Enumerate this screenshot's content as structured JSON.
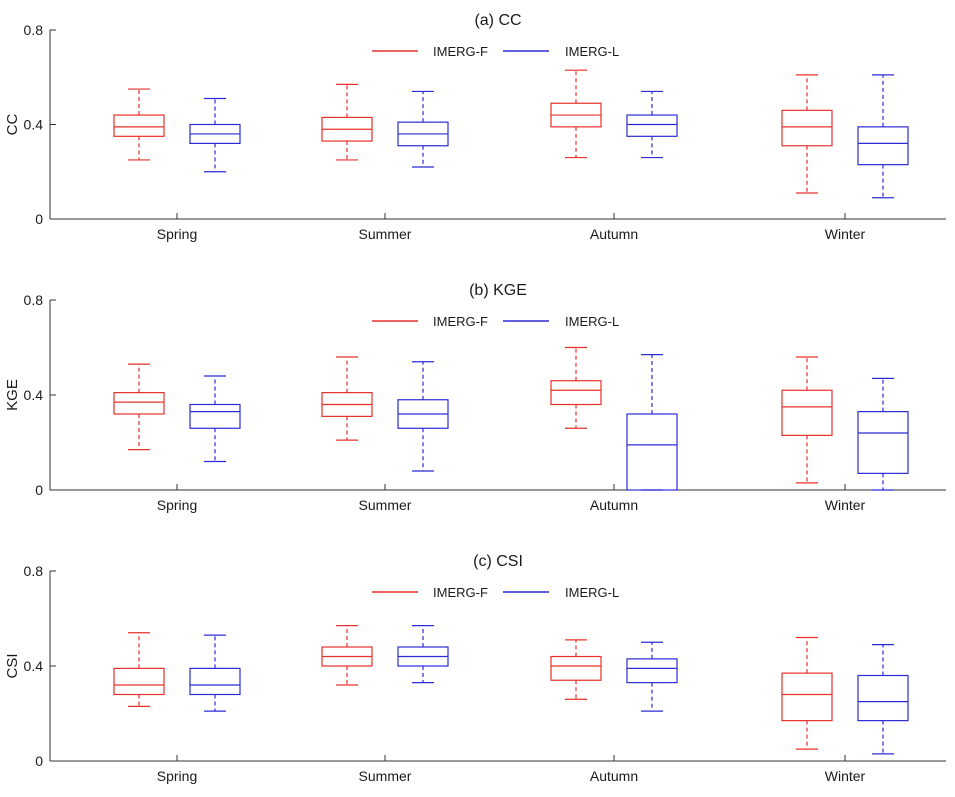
{
  "chart_data": [
    {
      "type": "box",
      "title": "(a) CC",
      "ylabel": "CC",
      "xlabel": "",
      "ylim": [
        0,
        0.8
      ],
      "yticks": [
        "0",
        "0.4",
        "0.8"
      ],
      "categories": [
        "Spring",
        "Summer",
        "Autumn",
        "Winter"
      ],
      "legend": "top-center",
      "series": [
        {
          "name": "IMERG-F",
          "color": "#e8302a",
          "boxes": [
            {
              "min": 0.25,
              "q1": 0.35,
              "median": 0.39,
              "q3": 0.44,
              "max": 0.55
            },
            {
              "min": 0.25,
              "q1": 0.33,
              "median": 0.38,
              "q3": 0.43,
              "max": 0.57
            },
            {
              "min": 0.26,
              "q1": 0.39,
              "median": 0.44,
              "q3": 0.49,
              "max": 0.63
            },
            {
              "min": 0.11,
              "q1": 0.31,
              "median": 0.39,
              "q3": 0.46,
              "max": 0.61
            }
          ]
        },
        {
          "name": "IMERG-L",
          "color": "#2b2bd6",
          "boxes": [
            {
              "min": 0.2,
              "q1": 0.32,
              "median": 0.36,
              "q3": 0.4,
              "max": 0.51
            },
            {
              "min": 0.22,
              "q1": 0.31,
              "median": 0.36,
              "q3": 0.41,
              "max": 0.54
            },
            {
              "min": 0.26,
              "q1": 0.35,
              "median": 0.4,
              "q3": 0.44,
              "max": 0.54
            },
            {
              "min": 0.09,
              "q1": 0.23,
              "median": 0.32,
              "q3": 0.39,
              "max": 0.61
            }
          ]
        }
      ]
    },
    {
      "type": "box",
      "title": "(b) KGE",
      "ylabel": "KGE",
      "xlabel": "",
      "ylim": [
        0,
        0.8
      ],
      "yticks": [
        "0",
        "0.4",
        "0.8"
      ],
      "categories": [
        "Spring",
        "Summer",
        "Autumn",
        "Winter"
      ],
      "legend": "top-center",
      "series": [
        {
          "name": "IMERG-F",
          "color": "#e8302a",
          "boxes": [
            {
              "min": 0.17,
              "q1": 0.32,
              "median": 0.37,
              "q3": 0.41,
              "max": 0.53
            },
            {
              "min": 0.21,
              "q1": 0.31,
              "median": 0.36,
              "q3": 0.41,
              "max": 0.56
            },
            {
              "min": 0.26,
              "q1": 0.36,
              "median": 0.42,
              "q3": 0.46,
              "max": 0.6
            },
            {
              "min": 0.03,
              "q1": 0.23,
              "median": 0.35,
              "q3": 0.42,
              "max": 0.56
            }
          ]
        },
        {
          "name": "IMERG-L",
          "color": "#2b2bd6",
          "boxes": [
            {
              "min": 0.12,
              "q1": 0.26,
              "median": 0.33,
              "q3": 0.36,
              "max": 0.48
            },
            {
              "min": 0.08,
              "q1": 0.26,
              "median": 0.32,
              "q3": 0.38,
              "max": 0.54
            },
            {
              "min": 0.0,
              "q1": 0.0,
              "median": 0.19,
              "q3": 0.32,
              "max": 0.57
            },
            {
              "min": 0.0,
              "q1": 0.07,
              "median": 0.24,
              "q3": 0.33,
              "max": 0.47
            }
          ]
        }
      ]
    },
    {
      "type": "box",
      "title": "(c) CSI",
      "ylabel": "CSI",
      "xlabel": "",
      "ylim": [
        0,
        0.8
      ],
      "yticks": [
        "0",
        "0.4",
        "0.8"
      ],
      "categories": [
        "Spring",
        "Summer",
        "Autumn",
        "Winter"
      ],
      "legend": "top-center",
      "series": [
        {
          "name": "IMERG-F",
          "color": "#e8302a",
          "boxes": [
            {
              "min": 0.23,
              "q1": 0.28,
              "median": 0.32,
              "q3": 0.39,
              "max": 0.54
            },
            {
              "min": 0.32,
              "q1": 0.4,
              "median": 0.44,
              "q3": 0.48,
              "max": 0.57
            },
            {
              "min": 0.26,
              "q1": 0.34,
              "median": 0.4,
              "q3": 0.44,
              "max": 0.51
            },
            {
              "min": 0.05,
              "q1": 0.17,
              "median": 0.28,
              "q3": 0.37,
              "max": 0.52
            }
          ]
        },
        {
          "name": "IMERG-L",
          "color": "#2b2bd6",
          "boxes": [
            {
              "min": 0.21,
              "q1": 0.28,
              "median": 0.32,
              "q3": 0.39,
              "max": 0.53
            },
            {
              "min": 0.33,
              "q1": 0.4,
              "median": 0.44,
              "q3": 0.48,
              "max": 0.57
            },
            {
              "min": 0.21,
              "q1": 0.33,
              "median": 0.39,
              "q3": 0.43,
              "max": 0.5
            },
            {
              "min": 0.03,
              "q1": 0.17,
              "median": 0.25,
              "q3": 0.36,
              "max": 0.49
            }
          ]
        }
      ]
    }
  ]
}
